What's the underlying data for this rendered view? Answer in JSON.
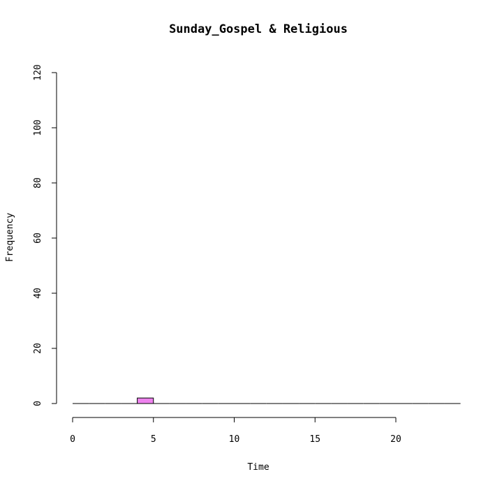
{
  "chart_data": {
    "type": "bar",
    "title": "Sunday_Gospel & Religious",
    "xlabel": "Time",
    "ylabel": "Frequency",
    "xlim": [
      0,
      24
    ],
    "ylim": [
      0,
      120
    ],
    "x_ticks": [
      "0",
      "5",
      "10",
      "15",
      "20"
    ],
    "y_ticks": [
      "0",
      "20",
      "40",
      "60",
      "80",
      "100",
      "120"
    ],
    "bin_width": 1,
    "bins": [
      {
        "start": 0,
        "end": 1,
        "count": 0
      },
      {
        "start": 1,
        "end": 2,
        "count": 0
      },
      {
        "start": 2,
        "end": 3,
        "count": 0
      },
      {
        "start": 3,
        "end": 4,
        "count": 0
      },
      {
        "start": 4,
        "end": 5,
        "count": 2
      },
      {
        "start": 5,
        "end": 6,
        "count": 0
      },
      {
        "start": 6,
        "end": 7,
        "count": 0
      },
      {
        "start": 7,
        "end": 8,
        "count": 0
      },
      {
        "start": 8,
        "end": 9,
        "count": 0
      },
      {
        "start": 9,
        "end": 10,
        "count": 0
      },
      {
        "start": 10,
        "end": 11,
        "count": 0
      },
      {
        "start": 11,
        "end": 12,
        "count": 0
      },
      {
        "start": 12,
        "end": 13,
        "count": 0
      },
      {
        "start": 13,
        "end": 14,
        "count": 0
      },
      {
        "start": 14,
        "end": 15,
        "count": 0
      },
      {
        "start": 15,
        "end": 16,
        "count": 0
      },
      {
        "start": 16,
        "end": 17,
        "count": 0
      },
      {
        "start": 17,
        "end": 18,
        "count": 0
      },
      {
        "start": 18,
        "end": 19,
        "count": 0
      },
      {
        "start": 19,
        "end": 20,
        "count": 0
      },
      {
        "start": 20,
        "end": 21,
        "count": 0
      },
      {
        "start": 21,
        "end": 22,
        "count": 0
      },
      {
        "start": 22,
        "end": 23,
        "count": 0
      },
      {
        "start": 23,
        "end": 24,
        "count": 0
      }
    ],
    "bar_color": "#ee82ee",
    "grid": false,
    "legend": "none"
  }
}
